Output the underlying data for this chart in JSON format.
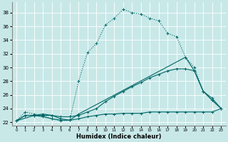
{
  "xlabel": "Humidex (Indice chaleur)",
  "bg_color": "#c8e8e8",
  "grid_color": "#ffffff",
  "line_color": "#006666",
  "xlim": [
    -0.5,
    23.5
  ],
  "ylim": [
    21.5,
    39.5
  ],
  "yticks": [
    22,
    24,
    26,
    28,
    30,
    32,
    34,
    36,
    38
  ],
  "xticks": [
    0,
    1,
    2,
    3,
    4,
    5,
    6,
    7,
    8,
    9,
    10,
    11,
    12,
    13,
    14,
    15,
    16,
    17,
    18,
    19,
    20,
    21,
    22,
    23
  ],
  "s1_x": [
    0,
    1,
    2,
    3,
    4,
    5,
    6,
    7,
    8,
    9,
    10,
    11,
    12,
    13,
    14,
    15,
    16,
    17,
    18,
    19,
    20,
    21,
    22,
    23
  ],
  "s1_y": [
    22.2,
    23.5,
    23.2,
    23.0,
    22.5,
    22.2,
    22.3,
    28.0,
    32.2,
    33.5,
    36.2,
    37.2,
    38.5,
    38.0,
    37.8,
    37.2,
    36.8,
    35.0,
    34.5,
    31.5,
    30.0,
    26.5,
    25.2,
    24.0
  ],
  "s2_x": [
    0,
    2,
    3,
    4,
    5,
    6,
    7,
    19,
    20,
    21,
    22,
    23
  ],
  "s2_y": [
    22.2,
    23.0,
    23.2,
    23.0,
    22.5,
    22.3,
    23.2,
    31.5,
    29.5,
    26.5,
    25.5,
    24.0
  ],
  "s3_x": [
    0,
    1,
    2,
    3,
    4,
    5,
    6,
    7,
    8,
    9,
    10,
    11,
    12,
    13,
    14,
    15,
    16,
    17,
    18,
    19,
    20,
    21,
    22,
    23
  ],
  "s3_y": [
    22.2,
    23.0,
    23.0,
    23.0,
    23.0,
    22.8,
    22.8,
    23.0,
    23.5,
    24.0,
    25.0,
    25.8,
    26.5,
    27.2,
    27.8,
    28.5,
    29.0,
    29.5,
    29.8,
    29.8,
    29.5,
    26.5,
    25.2,
    24.0
  ],
  "s4_x": [
    0,
    1,
    2,
    3,
    4,
    5,
    6,
    7,
    8,
    9,
    10,
    11,
    12,
    13,
    14,
    15,
    16,
    17,
    18,
    19,
    20,
    21,
    22,
    23
  ],
  "s4_y": [
    22.2,
    23.0,
    23.0,
    22.8,
    22.5,
    22.3,
    22.3,
    22.5,
    22.8,
    23.0,
    23.2,
    23.2,
    23.3,
    23.3,
    23.3,
    23.5,
    23.5,
    23.5,
    23.5,
    23.5,
    23.5,
    23.5,
    23.5,
    24.0
  ]
}
